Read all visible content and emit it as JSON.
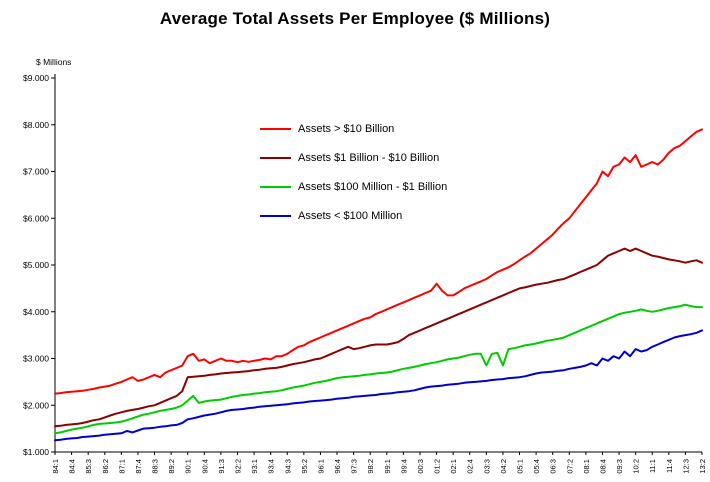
{
  "chart_data": {
    "type": "line",
    "title": "Average Total Assets Per Employee ($ Millions)",
    "y_unit_label": "$ Millions",
    "ylim": [
      1,
      9
    ],
    "y_tick_labels": [
      "$1.000",
      "$2.000",
      "$3.000",
      "$4.000",
      "$5.000",
      "$6.000",
      "$7.000",
      "$8.000",
      "$9.000"
    ],
    "x_tick_step": 3,
    "x_tick_labels": [
      "84:1",
      "84:4",
      "85:3",
      "86:2",
      "87:1",
      "87:4",
      "88:3",
      "89:2",
      "90:1",
      "90:4",
      "91:3",
      "92:2",
      "93:1",
      "93:4",
      "94:3",
      "95:2",
      "96:1",
      "96:4",
      "97:3",
      "98:2",
      "99:1",
      "99:4",
      "00:3",
      "01:2",
      "02:1",
      "02:4",
      "03:3",
      "04:2",
      "05:1",
      "05:4",
      "06:3",
      "07:2",
      "08:1",
      "08:4",
      "09:3",
      "10:2",
      "11:1",
      "11:4",
      "12:3",
      "13:2"
    ],
    "grid": "off",
    "legend_position": "upper-left-inside",
    "series": [
      {
        "name": "Assets > $10 Billion",
        "color": "#FF0000",
        "values": [
          2.25,
          2.26,
          2.28,
          2.29,
          2.3,
          2.31,
          2.33,
          2.35,
          2.38,
          2.4,
          2.42,
          2.46,
          2.5,
          2.55,
          2.6,
          2.52,
          2.55,
          2.6,
          2.65,
          2.6,
          2.7,
          2.75,
          2.8,
          2.85,
          3.05,
          3.1,
          2.95,
          2.98,
          2.9,
          2.95,
          3.0,
          2.95,
          2.95,
          2.92,
          2.95,
          2.93,
          2.95,
          2.97,
          3.0,
          2.98,
          3.05,
          3.05,
          3.1,
          3.18,
          3.25,
          3.28,
          3.35,
          3.4,
          3.45,
          3.5,
          3.55,
          3.6,
          3.65,
          3.7,
          3.75,
          3.8,
          3.85,
          3.88,
          3.95,
          4.0,
          4.05,
          4.1,
          4.15,
          4.2,
          4.25,
          4.3,
          4.35,
          4.4,
          4.45,
          4.6,
          4.45,
          4.35,
          4.35,
          4.42,
          4.5,
          4.55,
          4.6,
          4.65,
          4.7,
          4.78,
          4.85,
          4.9,
          4.95,
          5.02,
          5.1,
          5.18,
          5.25,
          5.35,
          5.45,
          5.55,
          5.65,
          5.78,
          5.9,
          6.0,
          6.15,
          6.3,
          6.45,
          6.6,
          6.75,
          7.0,
          6.9,
          7.1,
          7.15,
          7.3,
          7.2,
          7.35,
          7.1,
          7.15,
          7.2,
          7.15,
          7.25,
          7.4,
          7.5,
          7.55,
          7.65,
          7.75,
          7.85,
          7.9
        ]
      },
      {
        "name": "Assets $1 Billion - $10 Billion",
        "color": "#8B0000",
        "values": [
          1.55,
          1.56,
          1.58,
          1.59,
          1.6,
          1.62,
          1.65,
          1.68,
          1.7,
          1.74,
          1.78,
          1.82,
          1.85,
          1.88,
          1.9,
          1.92,
          1.95,
          1.98,
          2.0,
          2.05,
          2.1,
          2.15,
          2.2,
          2.3,
          2.6,
          2.61,
          2.62,
          2.63,
          2.65,
          2.66,
          2.68,
          2.69,
          2.7,
          2.71,
          2.72,
          2.73,
          2.75,
          2.76,
          2.78,
          2.79,
          2.8,
          2.82,
          2.85,
          2.88,
          2.9,
          2.92,
          2.95,
          2.98,
          3.0,
          3.05,
          3.1,
          3.15,
          3.2,
          3.25,
          3.2,
          3.22,
          3.25,
          3.28,
          3.3,
          3.3,
          3.3,
          3.32,
          3.35,
          3.42,
          3.5,
          3.55,
          3.6,
          3.65,
          3.7,
          3.75,
          3.8,
          3.85,
          3.9,
          3.95,
          4.0,
          4.05,
          4.1,
          4.15,
          4.2,
          4.25,
          4.3,
          4.35,
          4.4,
          4.45,
          4.5,
          4.52,
          4.55,
          4.58,
          4.6,
          4.62,
          4.65,
          4.68,
          4.7,
          4.75,
          4.8,
          4.85,
          4.9,
          4.95,
          5.0,
          5.1,
          5.2,
          5.25,
          5.3,
          5.35,
          5.3,
          5.35,
          5.3,
          5.25,
          5.2,
          5.18,
          5.15,
          5.12,
          5.1,
          5.08,
          5.05,
          5.08,
          5.1,
          5.05
        ]
      },
      {
        "name": "Assets $100 Million - $1 Billion",
        "color": "#00CC00",
        "values": [
          1.4,
          1.42,
          1.45,
          1.48,
          1.5,
          1.52,
          1.55,
          1.58,
          1.6,
          1.61,
          1.62,
          1.63,
          1.65,
          1.68,
          1.72,
          1.76,
          1.8,
          1.82,
          1.85,
          1.88,
          1.9,
          1.92,
          1.95,
          2.0,
          2.1,
          2.2,
          2.05,
          2.08,
          2.1,
          2.11,
          2.12,
          2.15,
          2.18,
          2.2,
          2.22,
          2.23,
          2.25,
          2.26,
          2.28,
          2.29,
          2.3,
          2.32,
          2.35,
          2.38,
          2.4,
          2.42,
          2.45,
          2.48,
          2.5,
          2.52,
          2.55,
          2.58,
          2.6,
          2.61,
          2.62,
          2.63,
          2.65,
          2.66,
          2.68,
          2.69,
          2.7,
          2.72,
          2.75,
          2.78,
          2.8,
          2.82,
          2.85,
          2.88,
          2.9,
          2.92,
          2.95,
          2.98,
          3.0,
          3.02,
          3.05,
          3.08,
          3.1,
          3.1,
          2.85,
          3.1,
          3.12,
          2.85,
          3.2,
          3.22,
          3.25,
          3.28,
          3.3,
          3.32,
          3.35,
          3.38,
          3.4,
          3.42,
          3.45,
          3.5,
          3.55,
          3.6,
          3.65,
          3.7,
          3.75,
          3.8,
          3.85,
          3.9,
          3.95,
          3.98,
          4.0,
          4.02,
          4.05,
          4.02,
          4.0,
          4.02,
          4.05,
          4.08,
          4.1,
          4.12,
          4.15,
          4.12,
          4.1,
          4.1
        ]
      },
      {
        "name": "Assets < $100 Million",
        "color": "#0000CC",
        "values": [
          1.25,
          1.26,
          1.28,
          1.29,
          1.3,
          1.32,
          1.33,
          1.34,
          1.35,
          1.37,
          1.38,
          1.39,
          1.4,
          1.45,
          1.42,
          1.46,
          1.5,
          1.51,
          1.52,
          1.54,
          1.55,
          1.57,
          1.58,
          1.62,
          1.7,
          1.72,
          1.75,
          1.78,
          1.8,
          1.82,
          1.85,
          1.88,
          1.9,
          1.91,
          1.92,
          1.94,
          1.95,
          1.97,
          1.98,
          1.99,
          2.0,
          2.01,
          2.02,
          2.04,
          2.05,
          2.06,
          2.08,
          2.09,
          2.1,
          2.11,
          2.12,
          2.14,
          2.15,
          2.16,
          2.18,
          2.19,
          2.2,
          2.21,
          2.22,
          2.24,
          2.25,
          2.26,
          2.28,
          2.29,
          2.3,
          2.32,
          2.35,
          2.38,
          2.4,
          2.41,
          2.42,
          2.44,
          2.45,
          2.46,
          2.48,
          2.49,
          2.5,
          2.51,
          2.52,
          2.54,
          2.55,
          2.56,
          2.58,
          2.59,
          2.6,
          2.62,
          2.65,
          2.68,
          2.7,
          2.71,
          2.72,
          2.74,
          2.75,
          2.78,
          2.8,
          2.82,
          2.85,
          2.9,
          2.85,
          3.0,
          2.95,
          3.05,
          3.0,
          3.15,
          3.05,
          3.2,
          3.15,
          3.18,
          3.25,
          3.3,
          3.35,
          3.4,
          3.45,
          3.48,
          3.5,
          3.52,
          3.55,
          3.6
        ]
      }
    ]
  }
}
